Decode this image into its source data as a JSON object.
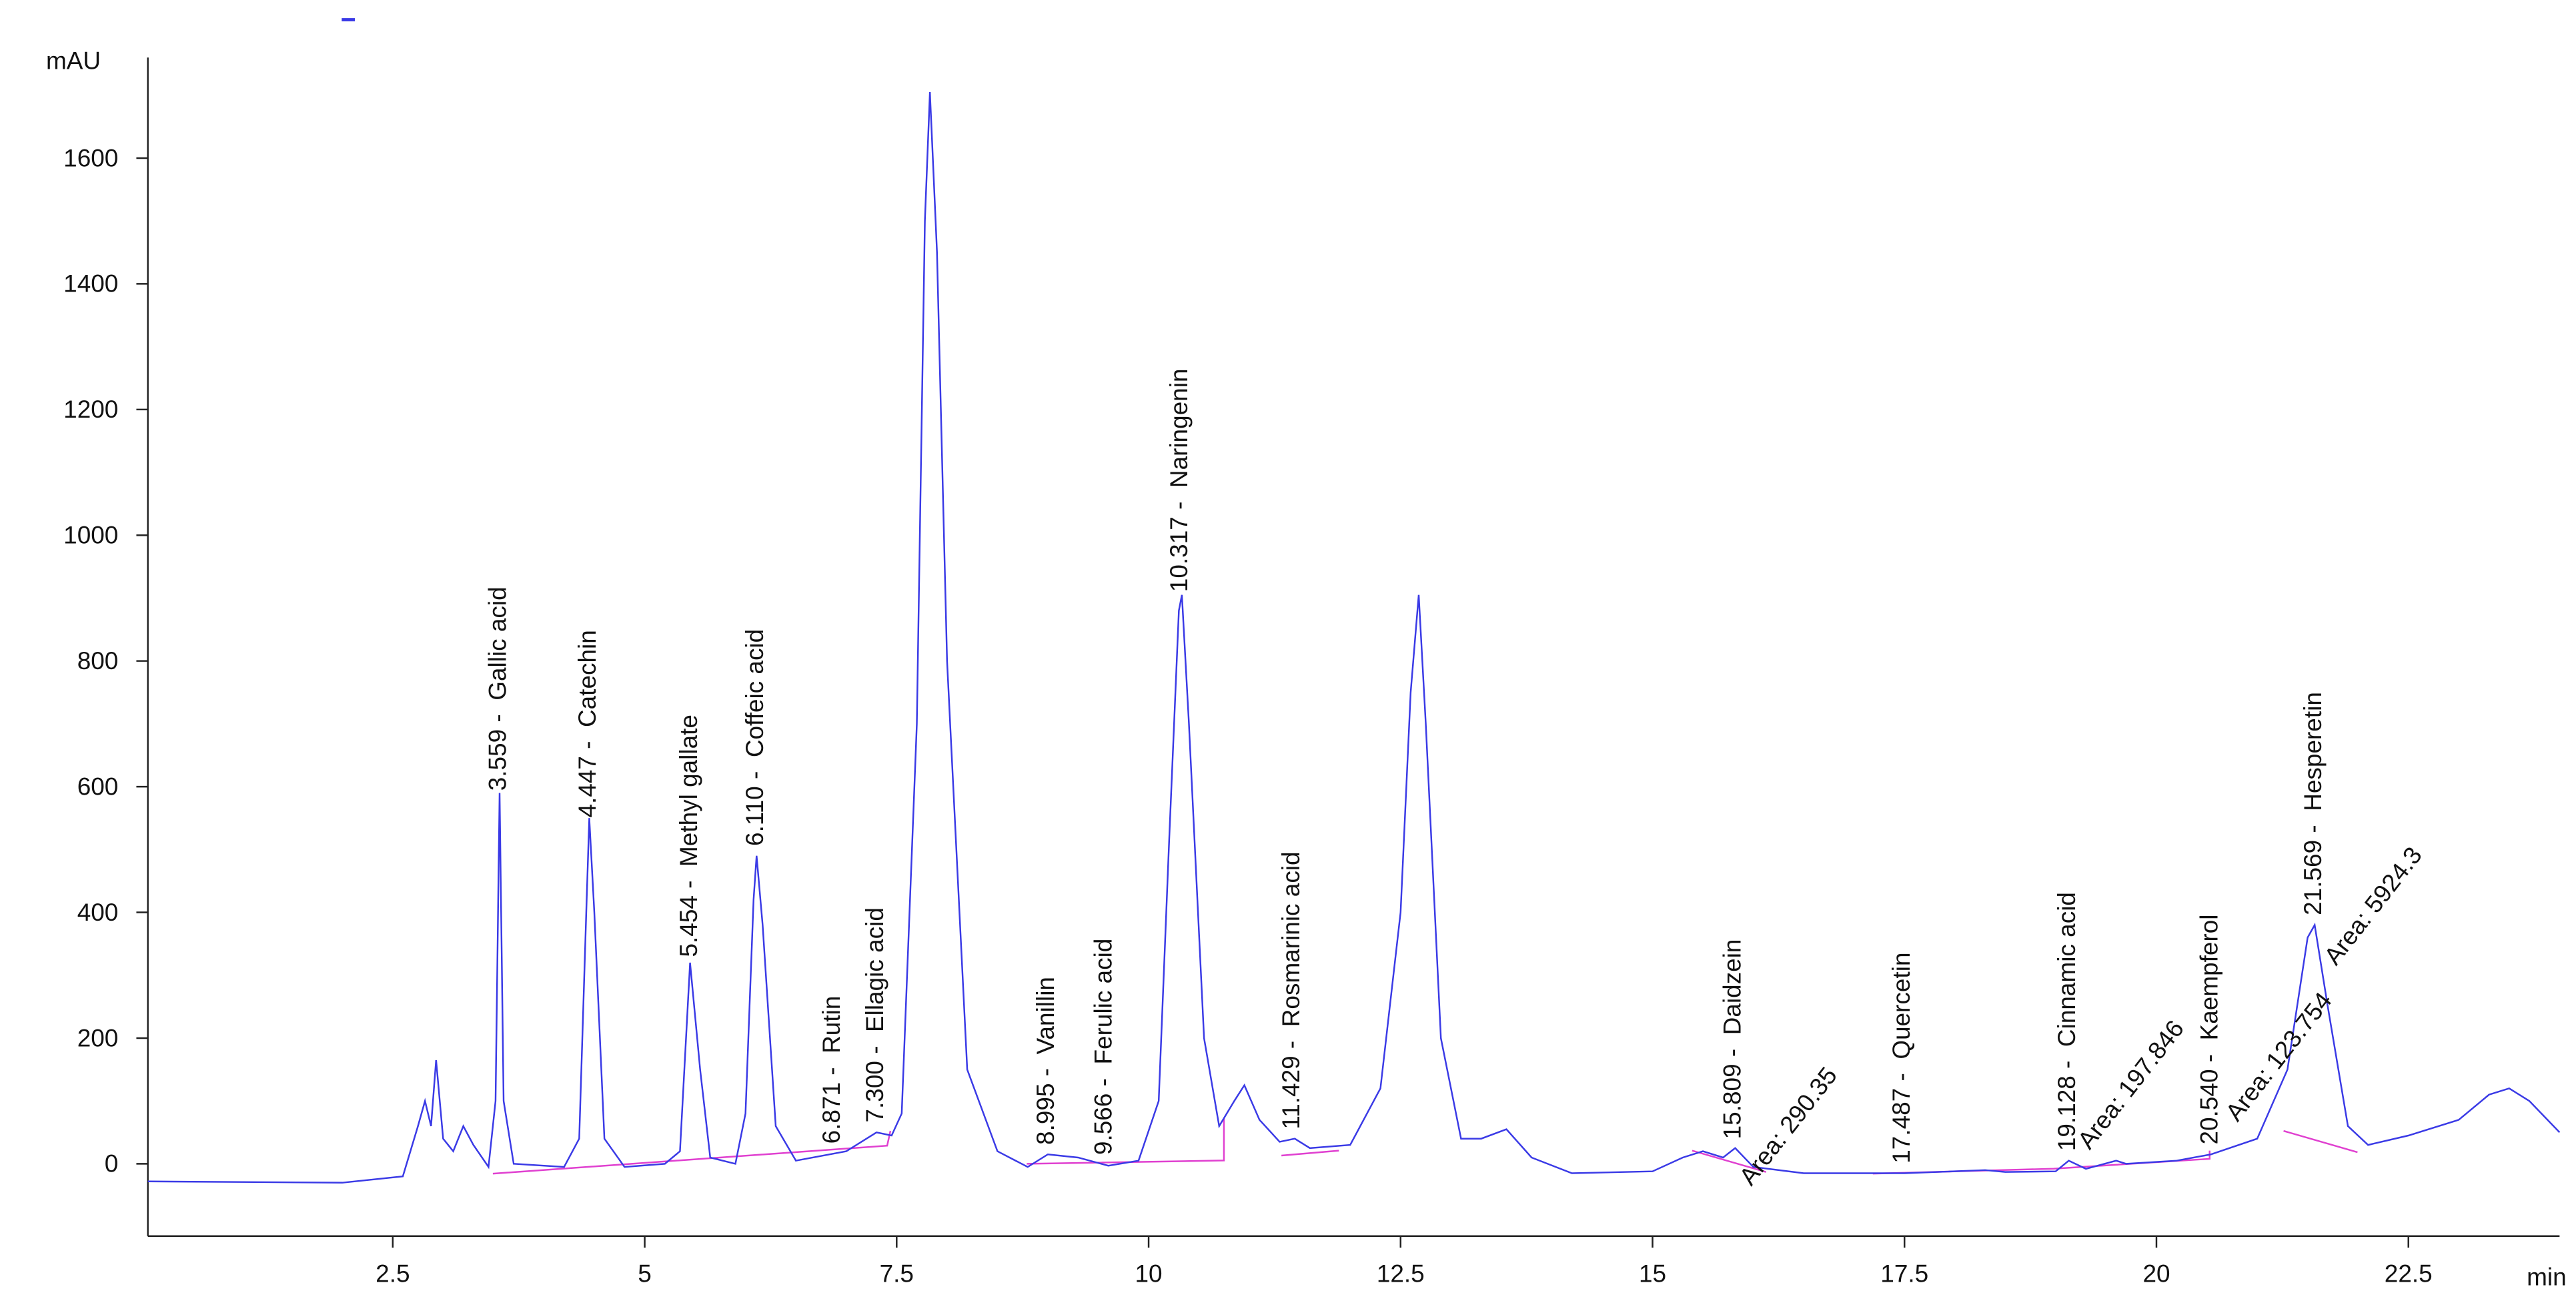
{
  "chart_data": {
    "type": "line",
    "y_label": "mAU",
    "x_label": "min",
    "color": "#3a3ae6",
    "xlim": [
      0.07,
      24.0
    ],
    "ylim": [
      -115,
      1760
    ],
    "xticks": [
      2.5,
      5,
      7.5,
      10,
      12.5,
      15,
      17.5,
      20,
      22.5
    ],
    "yticks": [
      0,
      200,
      400,
      600,
      800,
      1000,
      1200,
      1400,
      1600
    ],
    "x": [
      0.07,
      2.0,
      2.6,
      2.75,
      2.82,
      2.88,
      2.93,
      3.0,
      3.1,
      3.2,
      3.3,
      3.45,
      3.52,
      3.56,
      3.6,
      3.7,
      4.2,
      4.35,
      4.42,
      4.45,
      4.5,
      4.6,
      4.8,
      5.2,
      5.35,
      5.45,
      5.55,
      5.65,
      5.9,
      6.0,
      6.08,
      6.11,
      6.17,
      6.3,
      6.5,
      7.0,
      7.3,
      7.45,
      7.55,
      7.7,
      7.78,
      7.83,
      7.9,
      8.0,
      8.2,
      8.5,
      8.8,
      9.0,
      9.3,
      9.6,
      9.9,
      10.1,
      10.2,
      10.3,
      10.33,
      10.4,
      10.55,
      10.7,
      10.85,
      10.95,
      11.1,
      11.3,
      11.45,
      11.6,
      12.0,
      12.3,
      12.5,
      12.6,
      12.68,
      12.75,
      12.9,
      13.1,
      13.3,
      13.55,
      13.8,
      14.2,
      15.0,
      15.3,
      15.5,
      15.7,
      15.82,
      16.0,
      16.5,
      17.5,
      18.3,
      18.5,
      19.0,
      19.13,
      19.3,
      19.6,
      19.7,
      20.2,
      20.54,
      21.0,
      21.3,
      21.5,
      21.57,
      21.7,
      21.9,
      22.1,
      22.5,
      23.0,
      23.3,
      23.5,
      23.7,
      24.0
    ],
    "values": [
      -28,
      -30,
      -20,
      60,
      100,
      60,
      165,
      40,
      20,
      60,
      30,
      -5,
      100,
      590,
      100,
      0,
      -5,
      40,
      400,
      550,
      400,
      40,
      -5,
      0,
      20,
      320,
      150,
      10,
      0,
      80,
      420,
      490,
      380,
      60,
      5,
      20,
      50,
      45,
      80,
      700,
      1500,
      1705,
      1450,
      800,
      150,
      20,
      -5,
      15,
      10,
      -3,
      5,
      100,
      500,
      880,
      905,
      700,
      200,
      60,
      100,
      125,
      70,
      35,
      40,
      25,
      30,
      120,
      400,
      750,
      905,
      700,
      200,
      40,
      40,
      55,
      10,
      -15,
      -12,
      10,
      20,
      10,
      25,
      -5,
      -15,
      -15,
      -10,
      -13,
      -12,
      5,
      -8,
      5,
      0,
      5,
      15,
      40,
      150,
      360,
      380,
      250,
      60,
      30,
      45,
      70,
      110,
      120,
      100,
      50
    ],
    "annotations": [
      {
        "x": 3.559,
        "label": "3.559 -  Gallic acid"
      },
      {
        "x": 4.447,
        "label": "4.447 -  Catechin"
      },
      {
        "x": 5.454,
        "label": "5.454 -  Methyl gallate"
      },
      {
        "x": 6.11,
        "label": "6.110 -  Coffeic acid"
      },
      {
        "x": 6.871,
        "label": "6.871 -  Rutin"
      },
      {
        "x": 7.3,
        "label": "7.300 -  Ellagic acid"
      },
      {
        "x": 8.995,
        "label": "8.995 -  Vanillin"
      },
      {
        "x": 9.566,
        "label": "9.566 -  Ferulic acid"
      },
      {
        "x": 10.317,
        "label": "10.317 -  Naringenin"
      },
      {
        "x": 11.429,
        "label": "11.429 -  Rosmarinic acid"
      },
      {
        "x": 15.809,
        "label": "15.809 -  Daidzein"
      },
      {
        "x": 17.487,
        "label": "17.487 -  Quercetin"
      },
      {
        "x": 19.128,
        "label": "19.128 -  Cinnamic acid"
      },
      {
        "x": 20.54,
        "label": "20.540 -  Kaempferol"
      },
      {
        "x": 21.569,
        "label": "21.569 -  Hesperetin"
      }
    ],
    "area_labels": [
      "Area: 290.35",
      "Area: 197.846",
      "Area: 123.754",
      "Area: 5924.3"
    ]
  }
}
